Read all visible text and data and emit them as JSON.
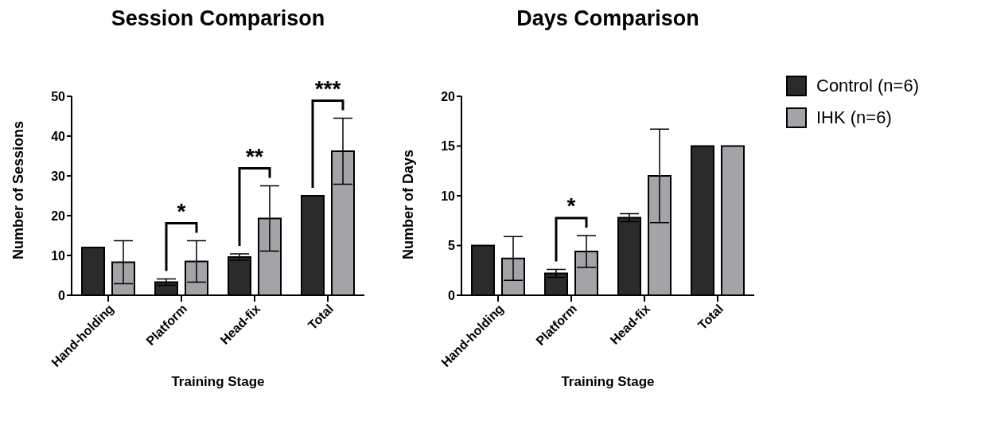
{
  "chart_data": [
    {
      "type": "bar",
      "title": "Session Comparison",
      "xlabel": "Training Stage",
      "ylabel": "Number of Sessions",
      "categories": [
        "Hand-holding",
        "Platform",
        "Head-fix",
        "Total"
      ],
      "series": [
        {
          "color": "#2b2b2b",
          "values": [
            12,
            3.3,
            9.6,
            25
          ],
          "errors": [
            null,
            0.8,
            0.8,
            null
          ]
        },
        {
          "color": "#a3a3a8",
          "values": [
            8.3,
            8.5,
            19.3,
            36.2
          ],
          "errors": [
            5.4,
            5.2,
            8.2,
            8.3
          ]
        }
      ],
      "ylim": [
        0,
        50
      ],
      "yticks": [
        0,
        10,
        20,
        30,
        40,
        50
      ],
      "annotations": [
        "*",
        "**",
        "***"
      ]
    },
    {
      "type": "bar",
      "title": "Days Comparison",
      "xlabel": "Training Stage",
      "ylabel": "Number of Days",
      "categories": [
        "Hand-holding",
        "Platform",
        "Head-fix",
        "Total"
      ],
      "series": [
        {
          "name": "Control (n=6)",
          "color": "#2b2b2b",
          "values": [
            5,
            2.2,
            7.8,
            15
          ],
          "errors": [
            null,
            0.4,
            0.4,
            null
          ]
        },
        {
          "name": "IHK (n=6)",
          "color": "#a3a3a8",
          "values": [
            3.7,
            4.4,
            12,
            15
          ],
          "errors": [
            2.2,
            1.6,
            4.7,
            null
          ]
        }
      ],
      "ylim": [
        0,
        20
      ],
      "yticks": [
        0,
        5,
        10,
        15,
        20
      ],
      "legend": "right",
      "annotations": [
        "*"
      ]
    }
  ]
}
